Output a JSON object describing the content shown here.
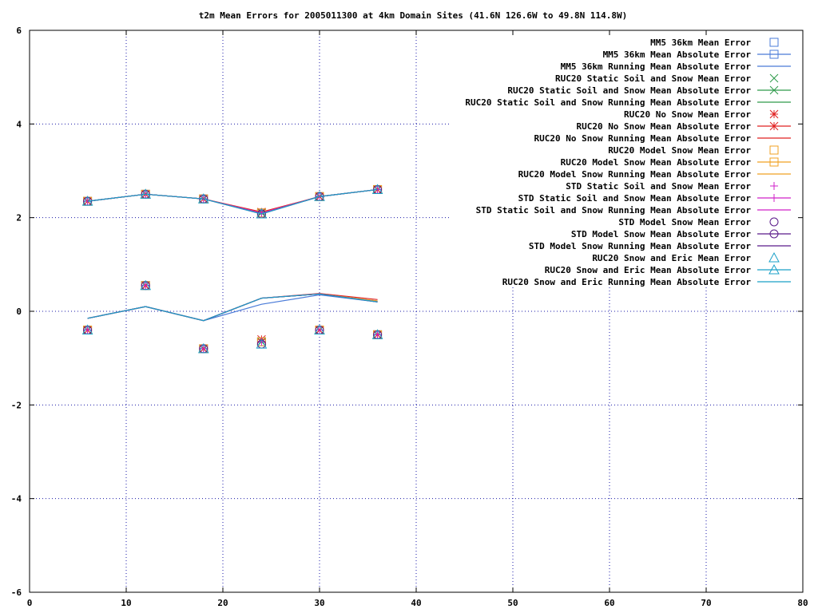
{
  "chart_data": {
    "type": "line",
    "title": "t2m Mean Errors for 2005011300 at 4km Domain Sites (41.6N 126.6W to 49.8N 114.8W)",
    "xlabel": "",
    "ylabel": "",
    "xlim": [
      0,
      80
    ],
    "ylim": [
      -6,
      6
    ],
    "x_ticks": [
      0,
      10,
      20,
      30,
      40,
      50,
      60,
      70,
      80
    ],
    "y_ticks": [
      -6,
      -4,
      -2,
      0,
      2,
      4,
      6
    ],
    "grid": true,
    "legend_position": "top-right",
    "x": [
      6,
      12,
      18,
      24,
      30,
      36
    ],
    "series": [
      {
        "name": "MM5 36km Mean Error",
        "kind": "points",
        "marker": "square",
        "color": "#4a7bd8",
        "values": [
          -0.4,
          0.55,
          -0.8,
          -0.65,
          -0.4,
          -0.5
        ]
      },
      {
        "name": "MM5 36km Mean Absolute Error",
        "kind": "linepoints",
        "marker": "square",
        "color": "#4a7bd8",
        "values": [
          2.35,
          2.5,
          2.4,
          2.1,
          2.45,
          2.6
        ]
      },
      {
        "name": "MM5 36km Running Mean Absolute Error",
        "kind": "line",
        "marker": "none",
        "color": "#4a7bd8",
        "values": [
          -0.15,
          0.1,
          -0.2,
          0.15,
          0.35,
          0.2
        ]
      },
      {
        "name": "RUC20 Static Soil and Snow Mean Error",
        "kind": "points",
        "marker": "cross",
        "color": "#2e9a4a",
        "values": [
          -0.4,
          0.55,
          -0.8,
          -0.65,
          -0.4,
          -0.5
        ]
      },
      {
        "name": "RUC20 Static Soil and Snow Mean Absolute Error",
        "kind": "linepoints",
        "marker": "cross",
        "color": "#2e9a4a",
        "values": [
          2.35,
          2.5,
          2.4,
          2.1,
          2.45,
          2.6
        ]
      },
      {
        "name": "RUC20 Static Soil and Snow Running Mean Absolute Error",
        "kind": "line",
        "marker": "none",
        "color": "#2e9a4a",
        "values": [
          -0.15,
          0.1,
          -0.2,
          0.28,
          0.37,
          0.22
        ]
      },
      {
        "name": "RUC20 No Snow Mean Error",
        "kind": "points",
        "marker": "star",
        "color": "#e02020",
        "values": [
          -0.4,
          0.55,
          -0.8,
          -0.6,
          -0.4,
          -0.5
        ]
      },
      {
        "name": "RUC20 No Snow Mean Absolute Error",
        "kind": "linepoints",
        "marker": "star",
        "color": "#e02020",
        "values": [
          2.35,
          2.5,
          2.4,
          2.12,
          2.45,
          2.6
        ]
      },
      {
        "name": "RUC20 No Snow Running Mean Absolute Error",
        "kind": "line",
        "marker": "none",
        "color": "#e02020",
        "values": [
          -0.15,
          0.1,
          -0.2,
          0.28,
          0.38,
          0.25
        ]
      },
      {
        "name": "RUC20 Model Snow Mean Error",
        "kind": "points",
        "marker": "square",
        "color": "#f0a020",
        "values": [
          -0.4,
          0.55,
          -0.8,
          -0.65,
          -0.4,
          -0.5
        ]
      },
      {
        "name": "RUC20 Model Snow Mean Absolute Error",
        "kind": "linepoints",
        "marker": "square",
        "color": "#f0a020",
        "values": [
          2.35,
          2.5,
          2.4,
          2.1,
          2.45,
          2.6
        ]
      },
      {
        "name": "RUC20 Model Snow Running Mean Absolute Error",
        "kind": "line",
        "marker": "none",
        "color": "#f0a020",
        "values": [
          -0.15,
          0.1,
          -0.2,
          0.28,
          0.37,
          0.22
        ]
      },
      {
        "name": "STD Static Soil and Snow Mean Error",
        "kind": "points",
        "marker": "plus",
        "color": "#d020c8",
        "values": [
          -0.4,
          0.55,
          -0.8,
          -0.65,
          -0.4,
          -0.5
        ]
      },
      {
        "name": "STD Static Soil and Snow Mean Absolute Error",
        "kind": "linepoints",
        "marker": "plus",
        "color": "#d020c8",
        "values": [
          2.35,
          2.5,
          2.4,
          2.1,
          2.45,
          2.6
        ]
      },
      {
        "name": "STD Static Soil and Snow Running Mean Absolute Error",
        "kind": "line",
        "marker": "none",
        "color": "#d020c8",
        "values": [
          -0.15,
          0.1,
          -0.2,
          0.28,
          0.37,
          0.2
        ]
      },
      {
        "name": "STD Model Snow Mean Error",
        "kind": "points",
        "marker": "circle",
        "color": "#5a1a8a",
        "values": [
          -0.4,
          0.55,
          -0.8,
          -0.7,
          -0.4,
          -0.5
        ]
      },
      {
        "name": "STD Model Snow Mean Absolute Error",
        "kind": "linepoints",
        "marker": "circle",
        "color": "#5a1a8a",
        "values": [
          2.35,
          2.5,
          2.4,
          2.08,
          2.45,
          2.6
        ]
      },
      {
        "name": "STD Model Snow Running Mean Absolute Error",
        "kind": "line",
        "marker": "none",
        "color": "#5a1a8a",
        "values": [
          -0.15,
          0.1,
          -0.2,
          0.28,
          0.37,
          0.2
        ]
      },
      {
        "name": "RUC20 Snow and Eric Mean Error",
        "kind": "points",
        "marker": "triangle",
        "color": "#1aa0c8",
        "values": [
          -0.4,
          0.55,
          -0.8,
          -0.7,
          -0.4,
          -0.5
        ]
      },
      {
        "name": "RUC20 Snow and Eric Mean Absolute Error",
        "kind": "linepoints",
        "marker": "triangle",
        "color": "#1aa0c8",
        "values": [
          2.35,
          2.5,
          2.4,
          2.08,
          2.45,
          2.6
        ]
      },
      {
        "name": "RUC20 Snow and Eric Running Mean Absolute Error",
        "kind": "line",
        "marker": "none",
        "color": "#1aa0c8",
        "values": [
          -0.15,
          0.1,
          -0.2,
          0.28,
          0.37,
          0.2
        ]
      }
    ]
  }
}
